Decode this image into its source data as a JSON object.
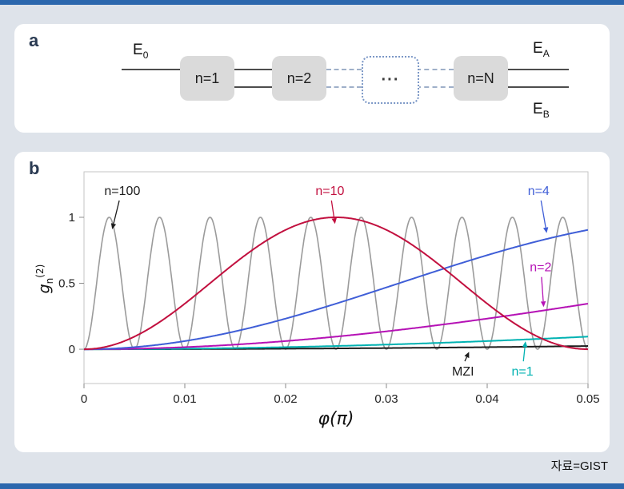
{
  "page": {
    "background_color": "#dee3ea",
    "accent_bar_color": "#2b67ad",
    "source_label": "자료=GIST"
  },
  "panel_a": {
    "label": "a",
    "input": {
      "base": "E",
      "sub": "0"
    },
    "boxes": [
      {
        "label": "n=1"
      },
      {
        "label": "n=2"
      },
      {
        "label": "···",
        "style": "dashed-placeholder"
      },
      {
        "label": "n=N"
      }
    ],
    "output_top": {
      "base": "E",
      "sub": "A"
    },
    "output_bottom": {
      "base": "E",
      "sub": "B"
    }
  },
  "panel_b": {
    "label": "b"
  },
  "chart_data": {
    "type": "line",
    "xlabel": "φ(π)",
    "ylabel": {
      "base": "g",
      "sub": "n",
      "sup": "(2)"
    },
    "xlim": [
      0,
      0.05
    ],
    "ylim": [
      -0.26,
      1.345
    ],
    "x_ticks": [
      0,
      0.01,
      0.02,
      0.03,
      0.04,
      0.05
    ],
    "x_tick_labels": [
      "0",
      "0.01",
      "0.02",
      "0.03",
      "0.04",
      "0.05"
    ],
    "y_ticks": [
      0,
      0.5,
      1
    ],
    "y_tick_labels": [
      "0",
      "0.5",
      "1"
    ],
    "grid": false,
    "legend_position": "inline-annotations",
    "series_model": "g2(φ) = sin²(2·n·π·φ), φ in units of π",
    "series": [
      {
        "name": "n=100",
        "n": 100,
        "color": "#9b9b9b",
        "peak_spacing_phi": 0.005,
        "peak_value": 1
      },
      {
        "name": "MZI",
        "n": 0.5,
        "color": "#1c1c1c",
        "value_at_xmax": 0.02
      },
      {
        "name": "n=1",
        "n": 1,
        "color": "#00b2b2",
        "value_at_xmax": 0.1
      },
      {
        "name": "n=2",
        "n": 2,
        "color": "#b511b5",
        "value_at_xmax": 0.35
      },
      {
        "name": "n=4",
        "n": 4,
        "color": "#3f5ed7",
        "value_at_xmax": 0.9
      },
      {
        "name": "n=10",
        "n": 10,
        "color": "#c2103f",
        "peak_phi": 0.025,
        "peak_value": 1
      }
    ],
    "annotations": [
      {
        "text": "n=100",
        "color": "#1c1c1c",
        "label_phi": 0.0038,
        "label_g": 1.2,
        "arrow_to_phi": 0.0028,
        "arrow_to_g": 0.91
      },
      {
        "text": "n=10",
        "color": "#c2103f",
        "label_phi": 0.0244,
        "label_g": 1.2,
        "arrow_to_phi": 0.0249,
        "arrow_to_g": 0.95
      },
      {
        "text": "n=4",
        "color": "#3f5ed7",
        "label_phi": 0.0451,
        "label_g": 1.2,
        "arrow_to_phi": 0.0459,
        "arrow_to_g": 0.88
      },
      {
        "text": "n=2",
        "color": "#b511b5",
        "label_phi": 0.0453,
        "label_g": 0.62,
        "arrow_to_phi": 0.0456,
        "arrow_to_g": 0.32
      },
      {
        "text": "MZI",
        "color": "#1c1c1c",
        "label_phi": 0.0376,
        "label_g": -0.17,
        "arrow_to_phi": 0.0382,
        "arrow_to_g": -0.02
      },
      {
        "text": "n=1",
        "color": "#00b2b2",
        "label_phi": 0.0435,
        "label_g": -0.17,
        "arrow_to_phi": 0.0438,
        "arrow_to_g": 0.06
      }
    ]
  }
}
